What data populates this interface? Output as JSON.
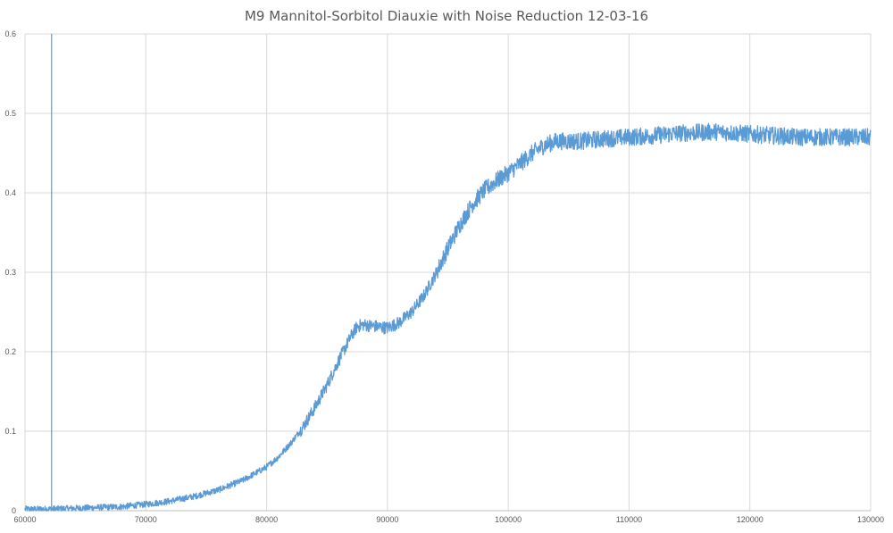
{
  "chart_data": {
    "type": "line",
    "title": "M9 Mannitol-Sorbitol Diauxie with Noise Reduction 12-03-16",
    "xlabel": "",
    "ylabel": "",
    "xlim": [
      60000,
      130000
    ],
    "ylim": [
      0,
      0.6
    ],
    "x_ticks": [
      "60000",
      "70000",
      "80000",
      "90000",
      "100000",
      "110000",
      "120000",
      "130000"
    ],
    "y_ticks": [
      "0",
      "0.1",
      "0.2",
      "0.3",
      "0.4",
      "0.5",
      "0.6"
    ],
    "grid": true,
    "legend": "none",
    "line_color": "#5b9bd5",
    "vertical_marker_x": 62200,
    "series": [
      {
        "x": [
          60000,
          62000,
          64000,
          66000,
          68000,
          70000,
          72000,
          74000,
          76000,
          78000,
          80000,
          81000,
          82000,
          83000,
          84000,
          85000,
          86000,
          87000,
          87500,
          88000,
          89000,
          90000,
          91000,
          92000,
          93000,
          94000,
          95000,
          96000,
          97000,
          98000,
          99000,
          100000,
          101000,
          102000,
          103000,
          104000,
          106000,
          108000,
          110000,
          112000,
          114000,
          116000,
          117000,
          118000,
          120000,
          122000,
          124000,
          126000,
          128000,
          130000
        ],
        "y": [
          0.002,
          0.002,
          0.003,
          0.004,
          0.005,
          0.008,
          0.012,
          0.018,
          0.026,
          0.038,
          0.055,
          0.068,
          0.085,
          0.105,
          0.13,
          0.158,
          0.19,
          0.22,
          0.232,
          0.234,
          0.232,
          0.23,
          0.237,
          0.25,
          0.27,
          0.298,
          0.33,
          0.36,
          0.385,
          0.403,
          0.415,
          0.425,
          0.437,
          0.45,
          0.46,
          0.465,
          0.465,
          0.468,
          0.47,
          0.472,
          0.475,
          0.476,
          0.477,
          0.476,
          0.474,
          0.472,
          0.47,
          0.47,
          0.47,
          0.47
        ]
      }
    ]
  }
}
